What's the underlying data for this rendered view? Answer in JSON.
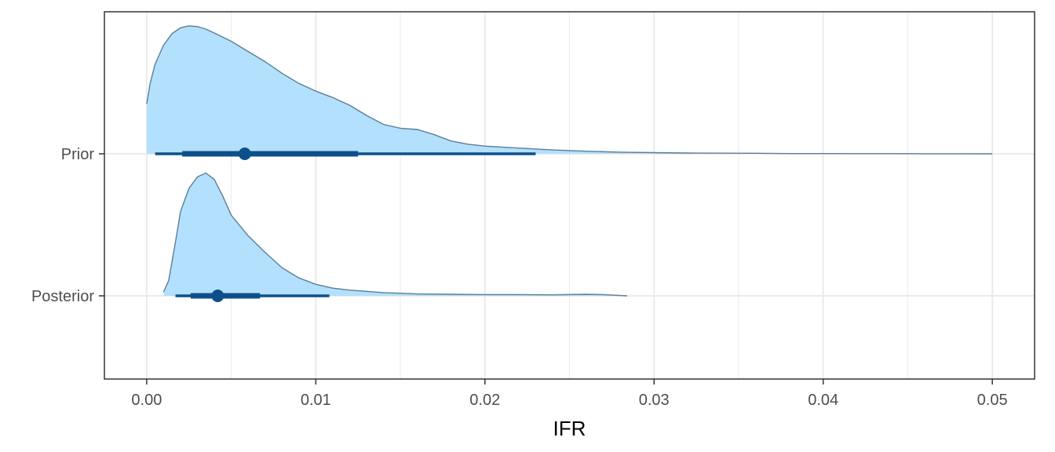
{
  "chart_data": {
    "type": "halfeye",
    "xlabel": "IFR",
    "ylabel": "",
    "xlim": [
      -0.0025,
      0.0525
    ],
    "x_ticks": [
      0.0,
      0.01,
      0.02,
      0.03,
      0.04,
      0.05
    ],
    "x_tick_labels": [
      "0.00",
      "0.01",
      "0.02",
      "0.03",
      "0.04",
      "0.05"
    ],
    "categories": [
      "Prior",
      "Posterior"
    ],
    "grid": true,
    "colors": {
      "fill": "#b3e0fc",
      "outline": "#5b7f95",
      "interval": "#0d4f8b",
      "grid": "#ebebeb",
      "panel_border": "#333333"
    },
    "series": [
      {
        "name": "Prior",
        "point": 0.0058,
        "interval_66": [
          0.0021,
          0.0125
        ],
        "interval_95": [
          0.0005,
          0.023
        ],
        "density": {
          "x": [
            0.0,
            0.0002,
            0.0005,
            0.001,
            0.0015,
            0.002,
            0.0025,
            0.003,
            0.0035,
            0.004,
            0.005,
            0.006,
            0.007,
            0.008,
            0.009,
            0.01,
            0.011,
            0.012,
            0.013,
            0.014,
            0.015,
            0.016,
            0.017,
            0.018,
            0.019,
            0.02,
            0.022,
            0.024,
            0.026,
            0.028,
            0.03,
            0.032,
            0.034,
            0.036,
            0.038,
            0.04,
            0.042,
            0.044,
            0.046,
            0.048,
            0.05
          ],
          "y": [
            0.39,
            0.55,
            0.7,
            0.85,
            0.94,
            0.985,
            1.0,
            0.995,
            0.975,
            0.945,
            0.88,
            0.8,
            0.72,
            0.63,
            0.55,
            0.49,
            0.44,
            0.38,
            0.3,
            0.23,
            0.2,
            0.19,
            0.15,
            0.1,
            0.075,
            0.06,
            0.045,
            0.03,
            0.02,
            0.013,
            0.009,
            0.006,
            0.005,
            0.004,
            0.002,
            0.002,
            0.0015,
            0.001,
            0.0008,
            0.0005,
            0.0
          ]
        }
      },
      {
        "name": "Posterior",
        "point": 0.0042,
        "interval_66": [
          0.0026,
          0.0067
        ],
        "interval_95": [
          0.0017,
          0.0108
        ],
        "density": {
          "x": [
            0.001,
            0.0013,
            0.0017,
            0.002,
            0.0025,
            0.003,
            0.0035,
            0.004,
            0.0045,
            0.005,
            0.006,
            0.007,
            0.008,
            0.009,
            0.01,
            0.011,
            0.012,
            0.013,
            0.014,
            0.015,
            0.016,
            0.018,
            0.02,
            0.022,
            0.024,
            0.026,
            0.027,
            0.0284
          ],
          "y": [
            0.03,
            0.12,
            0.42,
            0.66,
            0.84,
            0.93,
            0.96,
            0.91,
            0.78,
            0.63,
            0.47,
            0.34,
            0.22,
            0.14,
            0.09,
            0.06,
            0.045,
            0.035,
            0.025,
            0.02,
            0.015,
            0.012,
            0.01,
            0.01,
            0.008,
            0.012,
            0.01,
            0.0
          ]
        }
      }
    ]
  }
}
